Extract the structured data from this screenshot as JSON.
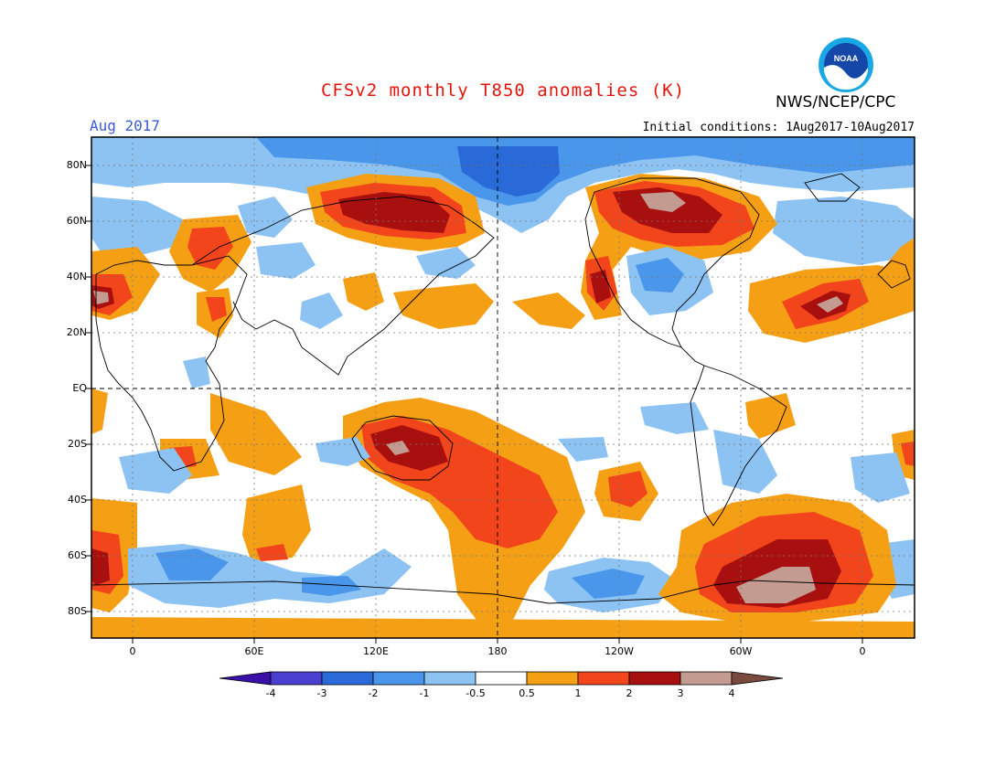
{
  "header": {
    "title": "CFSv2 monthly T850 anomalies (K)",
    "agency": "NWS/NCEP/CPC",
    "month": "Aug 2017",
    "initial_conditions": "Initial conditions: 1Aug2017-10Aug2017",
    "logo_text": "NOAA"
  },
  "map": {
    "lat_labels": [
      "80N",
      "60N",
      "40N",
      "20N",
      "EQ",
      "20S",
      "40S",
      "60S",
      "80S"
    ],
    "lon_labels": [
      "0",
      "60E",
      "120E",
      "180",
      "120W",
      "60W",
      "0"
    ],
    "colorbar": {
      "labels": [
        "-4",
        "-3",
        "-2",
        "-1",
        "-0.5",
        "0.5",
        "1",
        "2",
        "3",
        "4"
      ],
      "colors": [
        "#3a10a8",
        "#4a3fd0",
        "#2a6ad8",
        "#4a96ea",
        "#8cc3f3",
        "#ffffff",
        "#f59f14",
        "#f2451c",
        "#a80f0f",
        "#c49b91",
        "#7a4a3e"
      ]
    }
  }
}
